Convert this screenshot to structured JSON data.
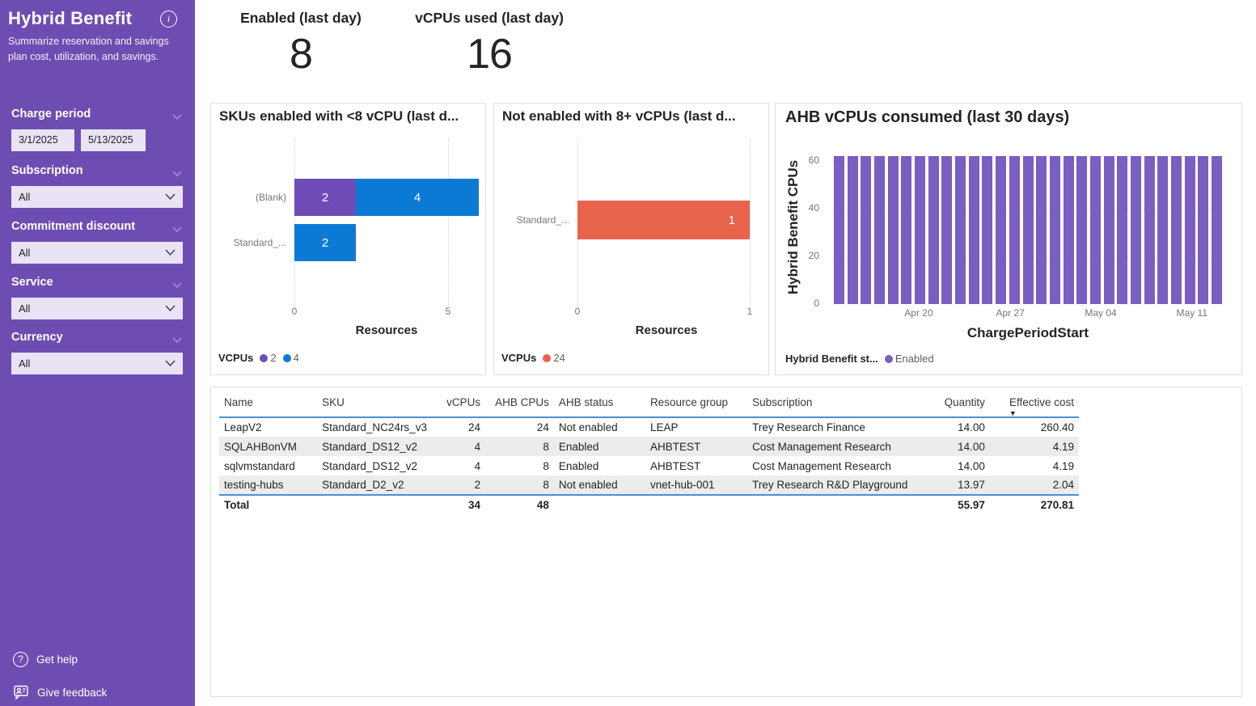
{
  "colors": {
    "sidebar": "#6E4DB2",
    "input_bg": "#EAE3F6",
    "purple_bar": "#6F4BB8",
    "blue_bar": "#0B7AD4",
    "red_bar": "#E8634C",
    "chart3_purple": "#7A5EC1",
    "text_dark": "#252423",
    "text_gray": "#767676",
    "table_line_blue": "#4D8FCB",
    "alt_row": "#ECECEC"
  },
  "sidebar": {
    "title": "Hybrid Benefit",
    "subtitle": "Summarize reservation and savings plan cost, utilization, and savings.",
    "filters": [
      {
        "label": "Charge period",
        "start": "3/1/2025",
        "end": "5/13/2025"
      },
      {
        "label": "Subscription",
        "value": "All"
      },
      {
        "label": "Commitment discount",
        "value": "All"
      },
      {
        "label": "Service",
        "value": "All"
      },
      {
        "label": "Currency",
        "value": "All"
      }
    ],
    "footer": [
      {
        "label": "Get help"
      },
      {
        "label": "Give feedback"
      }
    ]
  },
  "kpis": [
    {
      "label": "Enabled (last day)",
      "value": "8"
    },
    {
      "label": "vCPUs used (last day)",
      "value": "16"
    }
  ],
  "chart_data": [
    {
      "type": "bar",
      "orientation": "horizontal",
      "stacked": true,
      "title": "SKUs enabled with <8 vCPU (last d...",
      "categories": [
        "(Blank)",
        "Standard_..."
      ],
      "series": [
        {
          "name": "2",
          "color": "#6F4BB8",
          "values": [
            2,
            0
          ]
        },
        {
          "name": "4",
          "color": "#0B7AD4",
          "values": [
            4,
            2
          ]
        }
      ],
      "xlabel": "Resources",
      "xticks": [
        0,
        5
      ],
      "xlim": [
        0,
        6
      ],
      "legend_title": "VCPUs",
      "legend_position": "bottom",
      "grid": "vertical-dotted"
    },
    {
      "type": "bar",
      "orientation": "horizontal",
      "stacked": false,
      "title": "Not enabled with 8+ vCPUs (last d...",
      "categories": [
        "Standard_..."
      ],
      "series": [
        {
          "name": "24",
          "color": "#E8634C",
          "values": [
            1
          ]
        }
      ],
      "xlabel": "Resources",
      "xticks": [
        0,
        1
      ],
      "xlim": [
        0,
        1
      ],
      "legend_title": "VCPUs",
      "legend_position": "bottom",
      "grid": "vertical-dotted"
    },
    {
      "type": "bar",
      "orientation": "vertical",
      "title": "AHB vCPUs consumed (last 30 days)",
      "x_tick_labels": [
        "Apr 20",
        "Apr 27",
        "May 04",
        "May 11"
      ],
      "values": [
        62,
        62,
        62,
        62,
        62,
        62,
        62,
        62,
        62,
        62,
        62,
        62,
        62,
        62,
        62,
        62,
        62,
        62,
        62,
        62,
        62,
        62,
        62,
        62,
        62,
        62,
        62,
        62,
        62
      ],
      "xlabel": "ChargePeriodStart",
      "ylabel": "Hybrid Benefit CPUs",
      "yticks": [
        0,
        20,
        40,
        60
      ],
      "ylim": [
        0,
        65
      ],
      "legend_title": "Hybrid Benefit st...",
      "legend_items": [
        {
          "label": "Enabled",
          "color": "#7A5EC1"
        }
      ],
      "legend_position": "bottom",
      "grid": "horizontal-dotted"
    }
  ],
  "table": {
    "columns": [
      "Name",
      "SKU",
      "vCPUs",
      "AHB CPUs",
      "AHB status",
      "Resource group",
      "Subscription",
      "Quantity",
      "Effective cost"
    ],
    "sort_column": "Effective cost",
    "sort_direction": "desc",
    "rows": [
      [
        "LeapV2",
        "Standard_NC24rs_v3",
        "24",
        "24",
        "Not enabled",
        "LEAP",
        "Trey Research Finance",
        "14.00",
        "260.40"
      ],
      [
        "SQLAHBonVM",
        "Standard_DS12_v2",
        "4",
        "8",
        "Enabled",
        "AHBTEST",
        "Cost Management Research",
        "14.00",
        "4.19"
      ],
      [
        "sqlvmstandard",
        "Standard_DS12_v2",
        "4",
        "8",
        "Enabled",
        "AHBTEST",
        "Cost Management Research",
        "14.00",
        "4.19"
      ],
      [
        "testing-hubs",
        "Standard_D2_v2",
        "2",
        "8",
        "Not enabled",
        "vnet-hub-001",
        "Trey Research R&D Playground",
        "13.97",
        "2.04"
      ]
    ],
    "total": [
      "Total",
      "",
      "34",
      "48",
      "",
      "",
      "",
      "55.97",
      "270.81"
    ]
  }
}
